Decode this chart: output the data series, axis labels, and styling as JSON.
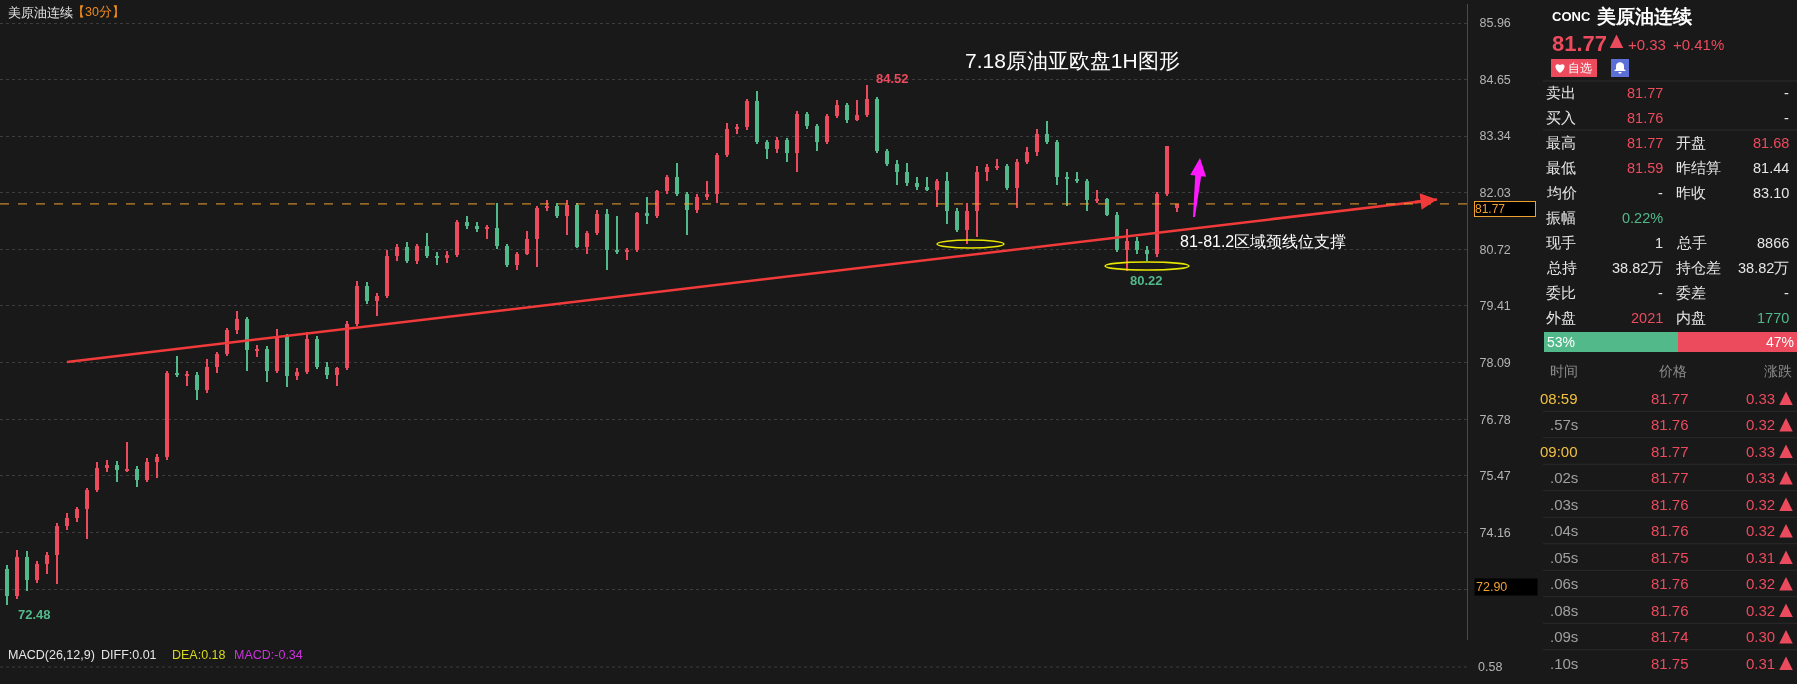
{
  "chart_data": [
    {
      "type": "candlestick",
      "title": "美原油连续",
      "subtitle": "【30分】",
      "categories": [
        null,
        null,
        null,
        null,
        null,
        null,
        null,
        null,
        null,
        null,
        null,
        null,
        null,
        null,
        null,
        null,
        null,
        null,
        null,
        null,
        null,
        null,
        null,
        null,
        null,
        null,
        null,
        null,
        null,
        null,
        null,
        null,
        null,
        null,
        null,
        null,
        null,
        null,
        null,
        null,
        null,
        null,
        null,
        null,
        null,
        null,
        null,
        null,
        null,
        null,
        null,
        null,
        null,
        null,
        null,
        null,
        null,
        null,
        null,
        null,
        null,
        null,
        null,
        null,
        null,
        null,
        null,
        null,
        null,
        null,
        null,
        null,
        null,
        null,
        null,
        null,
        null,
        null,
        null,
        null,
        null,
        null,
        null,
        null,
        null,
        null,
        null,
        null,
        null,
        null,
        null,
        null,
        null,
        null,
        null,
        null,
        null,
        null,
        null,
        null,
        null,
        null,
        null,
        null,
        null,
        null,
        null,
        null,
        null,
        null,
        null,
        null,
        null,
        null,
        null,
        null,
        null,
        null,
        null,
        null,
        null,
        null,
        null,
        null,
        null,
        null,
        null,
        null,
        null,
        null,
        null,
        null,
        null,
        null,
        null,
        null,
        null,
        null,
        null,
        null,
        null,
        null,
        null,
        null,
        null,
        null,
        null
      ],
      "ohlc": [
        [
          73.31,
          73.4,
          72.48,
          72.7
        ],
        [
          72.7,
          73.75,
          72.62,
          73.6
        ],
        [
          73.6,
          73.72,
          72.8,
          73.05
        ],
        [
          73.05,
          73.5,
          72.98,
          73.42
        ],
        [
          73.42,
          73.7,
          73.2,
          73.65
        ],
        [
          73.65,
          74.38,
          72.96,
          74.3
        ],
        [
          74.3,
          74.62,
          74.22,
          74.5
        ],
        [
          74.5,
          74.75,
          74.4,
          74.7
        ],
        [
          74.7,
          75.2,
          74.02,
          75.15
        ],
        [
          75.15,
          75.8,
          75.1,
          75.66
        ],
        [
          75.66,
          75.85,
          75.55,
          75.73
        ],
        [
          75.73,
          75.82,
          75.32,
          75.6
        ],
        [
          75.6,
          76.25,
          75.55,
          75.62
        ],
        [
          75.62,
          75.7,
          75.22,
          75.38
        ],
        [
          75.38,
          75.88,
          75.33,
          75.8
        ],
        [
          75.8,
          75.98,
          75.42,
          75.9
        ],
        [
          75.9,
          77.9,
          75.85,
          77.85
        ],
        [
          77.85,
          78.25,
          77.75,
          77.8
        ],
        [
          77.8,
          77.9,
          77.55,
          77.81
        ],
        [
          77.81,
          77.88,
          77.22,
          77.45
        ],
        [
          77.45,
          78.18,
          77.4,
          78.0
        ],
        [
          78.0,
          78.35,
          77.85,
          78.3
        ],
        [
          78.3,
          78.9,
          78.25,
          78.85
        ],
        [
          78.85,
          79.3,
          78.75,
          79.1
        ],
        [
          79.1,
          79.15,
          77.9,
          78.38
        ],
        [
          78.38,
          78.5,
          78.22,
          78.41
        ],
        [
          78.41,
          78.48,
          77.65,
          77.9
        ],
        [
          77.9,
          78.88,
          77.85,
          78.7
        ],
        [
          78.7,
          78.75,
          77.52,
          77.78
        ],
        [
          77.78,
          77.98,
          77.7,
          77.87
        ],
        [
          77.87,
          78.8,
          77.82,
          78.65
        ],
        [
          78.65,
          78.7,
          77.95,
          78.0
        ],
        [
          78.0,
          78.1,
          77.72,
          77.81
        ],
        [
          77.81,
          77.99,
          77.55,
          77.97
        ],
        [
          77.97,
          79.05,
          77.92,
          79.0
        ],
        [
          79.0,
          79.98,
          78.95,
          79.88
        ],
        [
          79.88,
          79.95,
          79.45,
          79.53
        ],
        [
          79.53,
          79.7,
          79.18,
          79.63
        ],
        [
          79.63,
          80.7,
          79.58,
          80.56
        ],
        [
          80.56,
          80.85,
          80.45,
          80.77
        ],
        [
          80.77,
          80.88,
          80.4,
          80.45
        ],
        [
          80.45,
          80.85,
          80.38,
          80.8
        ],
        [
          80.8,
          81.1,
          80.52,
          80.57
        ],
        [
          80.57,
          80.65,
          80.35,
          80.51
        ],
        [
          80.51,
          80.68,
          80.4,
          80.59
        ],
        [
          80.59,
          81.4,
          80.55,
          81.35
        ],
        [
          81.35,
          81.48,
          81.2,
          81.25
        ],
        [
          81.25,
          81.35,
          81.12,
          81.2
        ],
        [
          81.2,
          81.28,
          80.95,
          81.22
        ],
        [
          81.22,
          81.8,
          80.72,
          80.8
        ],
        [
          80.8,
          80.85,
          80.3,
          80.35
        ],
        [
          80.35,
          80.66,
          80.25,
          80.62
        ],
        [
          80.62,
          81.15,
          80.58,
          80.95
        ],
        [
          80.95,
          81.72,
          80.3,
          81.68
        ],
        [
          81.68,
          81.85,
          81.6,
          81.72
        ],
        [
          81.72,
          81.8,
          81.45,
          81.5
        ],
        [
          81.5,
          81.85,
          81.05,
          81.75
        ],
        [
          81.75,
          81.8,
          80.75,
          80.78
        ],
        [
          80.78,
          81.15,
          80.62,
          81.1
        ],
        [
          81.1,
          81.62,
          81.05,
          81.53
        ],
        [
          81.53,
          81.65,
          80.25,
          80.7
        ],
        [
          80.7,
          81.5,
          80.6,
          80.65
        ],
        [
          80.65,
          80.75,
          80.48,
          80.7
        ],
        [
          80.7,
          81.58,
          80.65,
          81.55
        ],
        [
          81.55,
          81.92,
          81.3,
          81.5
        ],
        [
          81.5,
          82.1,
          81.45,
          82.06
        ],
        [
          82.06,
          82.45,
          82.0,
          82.4
        ],
        [
          82.4,
          82.72,
          81.95,
          82.0
        ],
        [
          82.0,
          82.05,
          81.05,
          81.62
        ],
        [
          81.62,
          82.0,
          81.55,
          81.93
        ],
        [
          81.93,
          82.3,
          81.85,
          82.0
        ],
        [
          82.0,
          82.95,
          81.8,
          82.9
        ],
        [
          82.9,
          83.65,
          82.85,
          83.5
        ],
        [
          83.5,
          83.62,
          83.4,
          83.55
        ],
        [
          83.55,
          84.2,
          83.48,
          84.15
        ],
        [
          84.15,
          84.38,
          83.15,
          83.2
        ],
        [
          83.2,
          83.25,
          82.8,
          83.04
        ],
        [
          83.04,
          83.32,
          82.95,
          83.26
        ],
        [
          83.26,
          83.3,
          82.75,
          82.95
        ],
        [
          82.95,
          83.92,
          82.5,
          83.85
        ],
        [
          83.85,
          83.9,
          83.5,
          83.57
        ],
        [
          83.57,
          83.62,
          83.0,
          83.2
        ],
        [
          83.2,
          83.85,
          83.15,
          83.8
        ],
        [
          83.8,
          84.18,
          83.75,
          84.06
        ],
        [
          84.06,
          84.1,
          83.65,
          83.72
        ],
        [
          83.72,
          84.18,
          83.68,
          83.82
        ],
        [
          83.82,
          84.52,
          83.78,
          84.2
        ],
        [
          84.2,
          84.25,
          82.95,
          83.0
        ],
        [
          83.0,
          83.05,
          82.65,
          82.7
        ],
        [
          82.7,
          82.78,
          82.2,
          82.51
        ],
        [
          82.51,
          82.72,
          82.18,
          82.25
        ],
        [
          82.25,
          82.4,
          82.1,
          82.17
        ],
        [
          82.17,
          82.4,
          82.08,
          82.1
        ],
        [
          82.1,
          82.35,
          81.7,
          82.3
        ],
        [
          82.3,
          82.5,
          81.3,
          81.6
        ],
        [
          81.6,
          81.68,
          81.12,
          81.17
        ],
        [
          81.17,
          81.8,
          80.85,
          81.6
        ],
        [
          81.6,
          82.65,
          81.0,
          82.5
        ],
        [
          82.5,
          82.7,
          82.3,
          82.62
        ],
        [
          82.62,
          82.82,
          82.55,
          82.65
        ],
        [
          82.65,
          82.7,
          82.1,
          82.15
        ],
        [
          82.15,
          82.8,
          81.68,
          82.75
        ],
        [
          82.75,
          83.08,
          82.7,
          82.98
        ],
        [
          82.98,
          83.5,
          82.88,
          83.4
        ],
        [
          83.4,
          83.68,
          83.15,
          83.2
        ],
        [
          83.2,
          83.25,
          82.2,
          82.4
        ],
        [
          82.4,
          82.5,
          81.72,
          82.35
        ],
        [
          82.35,
          82.52,
          82.25,
          82.3
        ],
        [
          82.3,
          82.35,
          81.6,
          81.85
        ],
        [
          81.85,
          82.1,
          81.78,
          81.88
        ],
        [
          81.88,
          81.9,
          81.48,
          81.52
        ],
        [
          81.52,
          81.58,
          80.65,
          80.7
        ],
        [
          80.7,
          81.2,
          80.22,
          80.9
        ],
        [
          80.9,
          81.0,
          80.62,
          80.7
        ],
        [
          80.7,
          80.8,
          80.45,
          80.6
        ],
        [
          80.6,
          82.05,
          80.55,
          82.0
        ],
        [
          82.0,
          83.12,
          81.95,
          83.1
        ],
        [
          81.68,
          81.77,
          81.59,
          81.77
        ],
        null,
        null,
        null,
        null,
        null,
        null,
        null,
        null,
        null,
        null,
        null,
        null,
        null,
        null,
        null,
        null,
        null,
        null,
        null,
        null,
        null,
        null,
        null,
        null,
        null,
        null,
        null,
        null,
        null
      ],
      "series": [
        {
          "type": "line",
          "color": "#f23a3a",
          "values": [
            null,
            null,
            null,
            null,
            null,
            null,
            78.11,
            null,
            null,
            null,
            null,
            null,
            null,
            null,
            null,
            null,
            null,
            null,
            null,
            null,
            null,
            null,
            null,
            null,
            null,
            null,
            null,
            null,
            null,
            null,
            null,
            null,
            null,
            null,
            null,
            null,
            null,
            null,
            null,
            null,
            null,
            null,
            null,
            null,
            null,
            null,
            null,
            null,
            null,
            null,
            null,
            null,
            null,
            null,
            null,
            null,
            null,
            null,
            null,
            null,
            null,
            null,
            null,
            null,
            null,
            null,
            null,
            null,
            null,
            null,
            null,
            null,
            null,
            null,
            null,
            null,
            null,
            null,
            null,
            null,
            null,
            null,
            null,
            null,
            null,
            null,
            null,
            null,
            null,
            null,
            null,
            null,
            null,
            null,
            null,
            null,
            null,
            null,
            null,
            null,
            null,
            null,
            null,
            null,
            null,
            null,
            null,
            null,
            null,
            null,
            null,
            null,
            null,
            null,
            null,
            null,
            null,
            null,
            null,
            null,
            null,
            null,
            null,
            null,
            null,
            null,
            null,
            null,
            null,
            null,
            null,
            null,
            null,
            null,
            null,
            null,
            null,
            null,
            null,
            null,
            null,
            null,
            null,
            81.87,
            null,
            null,
            null
          ]
        }
      ],
      "ylim": [
        71.67,
        86.4
      ],
      "yticks": [
        {
          "value": 72.85,
          "label": null
        },
        74.16,
        75.47,
        76.78,
        78.09,
        79.41,
        80.72,
        82.03,
        83.34,
        84.65,
        85.96
      ],
      "grid": "y",
      "tick_labels": "y",
      "ref_lines": [
        {
          "axis": "y",
          "value": 81.77,
          "label": "81.77",
          "color": "#f0a030",
          "line_style": "dashed"
        }
      ],
      "annotations": [
        "7.18原油亚欧盘1H图形",
        "81-81.2区域颈线位支撑",
        "84.52",
        "80.22",
        "72.48",
        "72.90"
      ]
    },
    {
      "type": "other",
      "title": "MACD(26,12,9)",
      "annotations": [
        "DIFF:0.01",
        "DEA:0.18",
        "MACD:-0.34",
        "0.58"
      ],
      "colors": [
        "#e6e6e6",
        "#d9d91a",
        "#cc33dd",
        "#b4b4b4"
      ]
    },
    {
      "type": "other",
      "title": "CONC 美原油连续",
      "annotations": [
        "81.77",
        "+0.33",
        "+0.41%",
        "自选"
      ],
      "colors": [
        "#ec4b5e",
        "#ec4b5e",
        "#ec4b5e",
        "#ffffff"
      ]
    },
    {
      "type": "other",
      "cell_labels": [
        [
          "卖出",
          "81.77",
          null,
          "-"
        ],
        [
          "买入",
          "81.76",
          null,
          "-"
        ],
        [
          "最高",
          "81.77",
          "开盘",
          "81.68"
        ],
        [
          "最低",
          "81.59",
          "昨结算",
          "81.44"
        ],
        [
          "均价",
          "-",
          "昨收",
          "83.10"
        ],
        [
          "振幅",
          "0.22%",
          null,
          null
        ],
        [
          "现手",
          "1",
          "总手",
          "8866"
        ],
        [
          "总持",
          "38.82万",
          "持仓差",
          "38.82万"
        ],
        [
          "委比",
          "-",
          "委差",
          "-"
        ],
        [
          "外盘",
          "2021",
          "内盘",
          "1770"
        ]
      ],
      "colors": [
        [
          "#e6e6e6",
          "#ec4b5e",
          null,
          "#e6e6e6"
        ],
        [
          "#e6e6e6",
          "#ec4b5e",
          null,
          "#e6e6e6"
        ],
        [
          "#e6e6e6",
          "#ec4b5e",
          "#e6e6e6",
          "#ec4b5e"
        ],
        [
          "#e6e6e6",
          "#ec4b5e",
          "#e6e6e6",
          "#e6e6e6"
        ],
        [
          "#e6e6e6",
          "#e6e6e6",
          "#e6e6e6",
          "#e6e6e6"
        ],
        [
          "#e6e6e6",
          "#52b98a",
          null,
          null
        ],
        [
          "#e6e6e6",
          "#e6e6e6",
          "#e6e6e6",
          "#e6e6e6"
        ],
        [
          "#e6e6e6",
          "#e6e6e6",
          "#e6e6e6",
          "#e6e6e6"
        ],
        [
          "#e6e6e6",
          "#e6e6e6",
          "#e6e6e6",
          "#e6e6e6"
        ],
        [
          "#e6e6e6",
          "#ec4b5e",
          "#e6e6e6",
          "#52b98a"
        ]
      ]
    },
    {
      "type": "bar",
      "orientation": "horizontal",
      "stacked": true,
      "categories": [
        null
      ],
      "series": [
        {
          "color": "#52b98a",
          "values": [
            53
          ],
          "value_labels": [
            "53%"
          ]
        },
        {
          "color": "#ec4b5e",
          "values": [
            47
          ],
          "value_labels": [
            "47%"
          ]
        }
      ],
      "tick_labels": false
    },
    {
      "type": "other",
      "categories": [
        "时间",
        "价格",
        "涨跌"
      ],
      "cell_labels": [
        [
          "08:59",
          "81.77",
          "0.33"
        ],
        [
          ".57s",
          "81.76",
          "0.32"
        ],
        [
          "09:00",
          "81.77",
          "0.33"
        ],
        [
          ".02s",
          "81.77",
          "0.33"
        ],
        [
          ".03s",
          "81.76",
          "0.32"
        ],
        [
          ".04s",
          "81.76",
          "0.32"
        ],
        [
          ".05s",
          "81.75",
          "0.31"
        ],
        [
          ".06s",
          "81.76",
          "0.32"
        ],
        [
          ".08s",
          "81.76",
          "0.32"
        ],
        [
          ".09s",
          "81.74",
          "0.30"
        ],
        [
          ".10s",
          "81.75",
          "0.31"
        ]
      ],
      "colors": [
        [
          "#f0c040",
          "#ec4b5e",
          "#ec4b5e"
        ],
        [
          "#a0a0a0",
          "#ec4b5e",
          "#ec4b5e"
        ],
        [
          "#f0c040",
          "#ec4b5e",
          "#ec4b5e"
        ],
        [
          "#a0a0a0",
          "#ec4b5e",
          "#ec4b5e"
        ],
        [
          "#a0a0a0",
          "#ec4b5e",
          "#ec4b5e"
        ],
        [
          "#a0a0a0",
          "#ec4b5e",
          "#ec4b5e"
        ],
        [
          "#a0a0a0",
          "#ec4b5e",
          "#ec4b5e"
        ],
        [
          "#a0a0a0",
          "#ec4b5e",
          "#ec4b5e"
        ],
        [
          "#a0a0a0",
          "#ec4b5e",
          "#ec4b5e"
        ],
        [
          "#a0a0a0",
          "#ec4b5e",
          "#ec4b5e"
        ],
        [
          "#a0a0a0",
          "#ec4b5e",
          "#ec4b5e"
        ]
      ]
    }
  ]
}
